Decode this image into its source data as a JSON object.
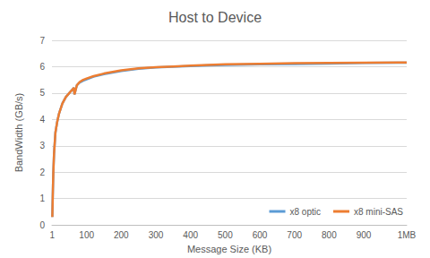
{
  "chart_data": {
    "type": "line",
    "title": "Host to Device",
    "x_label": "Message Size (KB)",
    "y_label": "BandWidth (GB/s)",
    "x": [
      1,
      2,
      3,
      4,
      6,
      8,
      10,
      15,
      20,
      30,
      40,
      50,
      60,
      63,
      65,
      68,
      72,
      80,
      90,
      100,
      120,
      150,
      200,
      250,
      300,
      350,
      400,
      450,
      500,
      600,
      700,
      800,
      900,
      1000,
      1024
    ],
    "series": [
      {
        "name": "x8 optic",
        "color": "#5b9bd5",
        "values": [
          0.3,
          0.9,
          1.5,
          2.0,
          2.7,
          3.1,
          3.5,
          3.9,
          4.2,
          4.6,
          4.85,
          5.0,
          5.15,
          5.2,
          4.95,
          5.1,
          5.3,
          5.4,
          5.47,
          5.52,
          5.62,
          5.72,
          5.84,
          5.92,
          5.97,
          6.0,
          6.02,
          6.05,
          6.07,
          6.09,
          6.1,
          6.12,
          6.14,
          6.15,
          6.15
        ]
      },
      {
        "name": "x8 mini-SAS",
        "color": "#ed7d31",
        "values": [
          0.3,
          0.9,
          1.5,
          2.0,
          2.7,
          3.1,
          3.5,
          3.9,
          4.2,
          4.6,
          4.85,
          5.0,
          5.15,
          5.2,
          4.95,
          5.1,
          5.3,
          5.42,
          5.5,
          5.55,
          5.64,
          5.74,
          5.86,
          5.94,
          5.98,
          6.01,
          6.04,
          6.07,
          6.09,
          6.11,
          6.13,
          6.14,
          6.15,
          6.16,
          6.16
        ]
      }
    ],
    "xlim": [
      0,
      1024
    ],
    "xticks": [
      1,
      100,
      200,
      300,
      400,
      500,
      600,
      700,
      800,
      900,
      {
        "value": 1024,
        "label": "1MB"
      }
    ],
    "ylim": [
      0,
      7
    ],
    "yticks": [
      0,
      1,
      2,
      3,
      4,
      5,
      6,
      7
    ],
    "grid": true,
    "legend": "lower right"
  }
}
